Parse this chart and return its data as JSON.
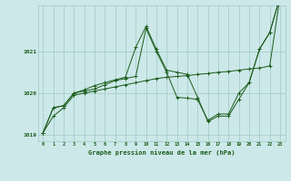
{
  "x": [
    0,
    1,
    2,
    3,
    4,
    5,
    6,
    7,
    8,
    9,
    10,
    11,
    12,
    13,
    14,
    15,
    16,
    17,
    18,
    19,
    20,
    21,
    22,
    23
  ],
  "series1": [
    1019.05,
    1019.45,
    1019.65,
    1019.95,
    1020.0,
    1020.05,
    1020.1,
    1020.15,
    1020.2,
    1020.25,
    1020.3,
    1020.35,
    1020.38,
    1020.4,
    1020.42,
    1020.45,
    1020.47,
    1020.5,
    1020.52,
    1020.55,
    1020.58,
    1020.6,
    1020.65,
    1022.3
  ],
  "series2": [
    1019.05,
    1019.65,
    1019.7,
    1020.0,
    1020.05,
    1020.1,
    1020.2,
    1020.3,
    1020.35,
    1020.4,
    1021.55,
    1021.0,
    1020.5,
    1019.9,
    1019.88,
    1019.85,
    1019.35,
    1019.5,
    1019.5,
    1020.0,
    1020.25,
    1021.05,
    1021.45,
    1022.3
  ],
  "series3": [
    1019.05,
    1019.65,
    1019.7,
    1020.0,
    1020.08,
    1020.18,
    1020.25,
    1020.32,
    1020.38,
    1021.1,
    1021.6,
    1021.05,
    1020.55,
    1020.5,
    1020.45,
    1019.9,
    1019.32,
    1019.45,
    1019.45,
    1019.85,
    1020.25,
    1021.05,
    1021.45,
    1022.3
  ],
  "ylim": [
    1018.85,
    1022.1
  ],
  "yticks": [
    1019,
    1020,
    1021
  ],
  "ytick_labels": [
    "1019",
    "1020",
    "1021"
  ],
  "xlabel": "Graphe pression niveau de la mer (hPa)",
  "bg_color": "#cce8e8",
  "line_color": "#1a5c1a",
  "grid_color": "#a0c8c8",
  "figsize": [
    3.2,
    2.0
  ],
  "dpi": 100
}
